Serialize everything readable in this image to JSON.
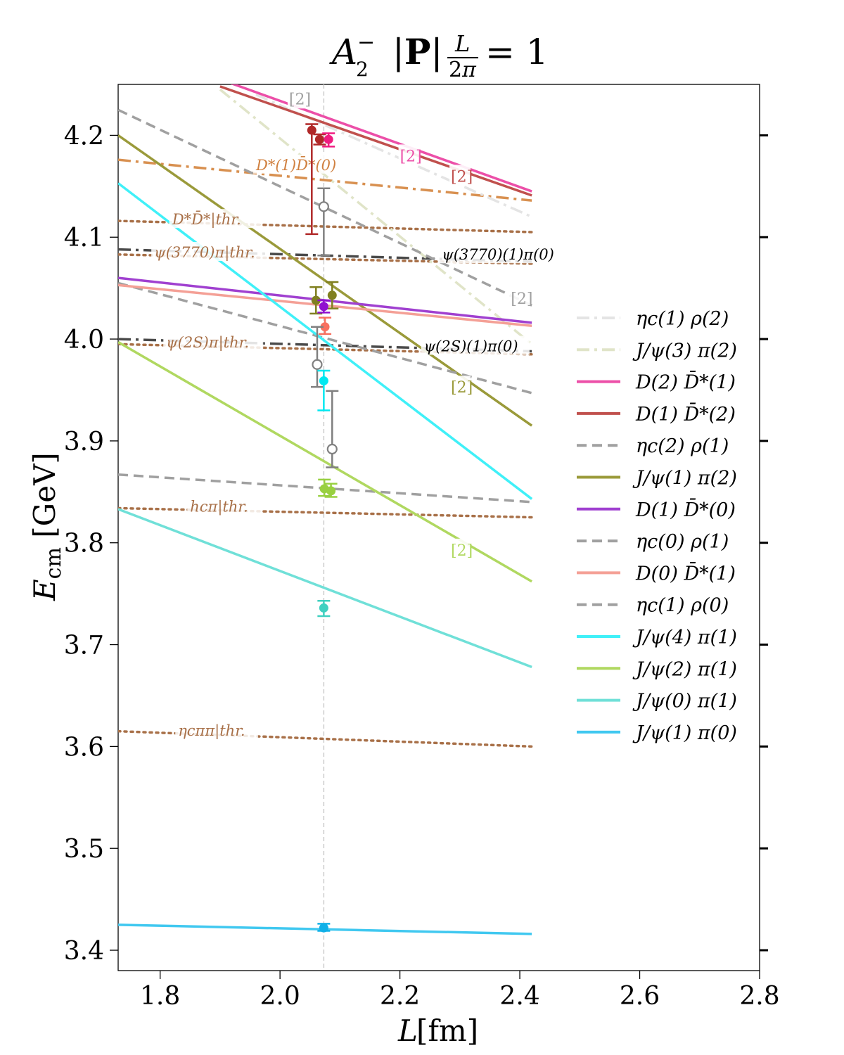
{
  "chart_data": {
    "type": "line",
    "title": "A₂⁻ |P|L/2π = 1",
    "xlabel": "L [fm]",
    "ylabel": "E_cm [GeV]",
    "xlim": [
      1.73,
      2.8
    ],
    "ylim": [
      3.38,
      4.25
    ],
    "x_ticks": [
      1.8,
      2.0,
      2.2,
      2.4,
      2.6,
      2.8
    ],
    "x_tick_labels": [
      "1.8",
      "2.0",
      "2.2",
      "2.4",
      "2.6",
      "2.8"
    ],
    "y_ticks": [
      3.4,
      3.5,
      3.6,
      3.7,
      3.8,
      3.9,
      4.0,
      4.1,
      4.2
    ],
    "y_tick_labels": [
      "3.4",
      "3.5",
      "3.6",
      "3.7",
      "3.8",
      "3.9",
      "4.0",
      "4.1",
      "4.2"
    ],
    "reference_line_x": 2.073,
    "grid": false,
    "legend_position": "right",
    "series": [
      {
        "name": "ηc(1) ρ(2)",
        "color": "#e4e4e4",
        "style": "dashdot",
        "x": [
          1.96,
          2.42
        ],
        "values": [
          4.24,
          4.12
        ]
      },
      {
        "name": "J/ψ(3) π(2)",
        "color": "#e0e4c8",
        "style": "dashdot",
        "x": [
          1.9,
          2.42
        ],
        "values": [
          4.245,
          3.995
        ]
      },
      {
        "name": "D(2) D̄*(1)",
        "color": "#ec4fa8",
        "style": "solid",
        "x": [
          1.9,
          2.42
        ],
        "values": [
          4.255,
          4.145
        ]
      },
      {
        "name": "D(1) D̄*(2)",
        "color": "#c0504d",
        "style": "solid",
        "x": [
          1.9,
          2.42
        ],
        "values": [
          4.248,
          4.141
        ]
      },
      {
        "name": "ηc(2) ρ(1)",
        "color": "#a0a0a0",
        "style": "dashed",
        "x": [
          1.73,
          2.42
        ],
        "values": [
          4.225,
          4.033
        ]
      },
      {
        "name": "J/ψ(1) π(2)",
        "color": "#9a9a3a",
        "style": "solid",
        "x": [
          1.73,
          2.42
        ],
        "values": [
          4.2,
          3.915
        ]
      },
      {
        "name": "D(1) D̄*(0)",
        "color": "#a040d0",
        "style": "solid",
        "x": [
          1.73,
          2.42
        ],
        "values": [
          4.06,
          4.016
        ]
      },
      {
        "name": "ηc(0) ρ(1)",
        "color": "#a0a0a0",
        "style": "dashed",
        "x": [
          1.73,
          2.42
        ],
        "values": [
          4.055,
          3.947
        ]
      },
      {
        "name": "D(0) D̄*(1)",
        "color": "#f4a096",
        "style": "solid",
        "x": [
          1.73,
          2.42
        ],
        "values": [
          4.053,
          4.013
        ]
      },
      {
        "name": "ηc(1) ρ(0)",
        "color": "#a0a0a0",
        "style": "dashed",
        "x": [
          1.73,
          2.42
        ],
        "values": [
          3.867,
          3.84
        ]
      },
      {
        "name": "J/ψ(4) π(1)",
        "color": "#40f0f8",
        "style": "solid",
        "x": [
          1.73,
          2.42
        ],
        "values": [
          4.153,
          3.843
        ]
      },
      {
        "name": "J/ψ(2) π(1)",
        "color": "#b0d860",
        "style": "solid",
        "x": [
          1.73,
          2.42
        ],
        "values": [
          3.997,
          3.762
        ]
      },
      {
        "name": "J/ψ(0) π(1)",
        "color": "#70e0d8",
        "style": "solid",
        "x": [
          1.73,
          2.42
        ],
        "values": [
          3.833,
          3.678
        ]
      },
      {
        "name": "J/ψ(1) π(0)",
        "color": "#40c8f0",
        "style": "solid",
        "x": [
          1.73,
          2.42
        ],
        "values": [
          3.425,
          3.416
        ]
      }
    ],
    "unlabeled_lines": [
      {
        "color": "#d89050",
        "style": "dashdot",
        "x": [
          1.73,
          2.42
        ],
        "values": [
          4.176,
          4.136
        ]
      },
      {
        "color": "#4a4a4a",
        "style": "dashdot",
        "x": [
          1.73,
          2.42
        ],
        "values": [
          4.088,
          4.076
        ]
      },
      {
        "color": "#4a4a4a",
        "style": "dashdot",
        "x": [
          1.73,
          2.42
        ],
        "values": [
          4.0,
          3.988
        ]
      }
    ],
    "threshold_lines": [
      {
        "label": "D*D̄*|thr.",
        "color": "#a87048",
        "x": [
          1.73,
          2.42
        ],
        "values": [
          4.116,
          4.105
        ]
      },
      {
        "label": "ψ(3770)π|thr.",
        "color": "#a87048",
        "x": [
          1.73,
          2.42
        ],
        "values": [
          4.083,
          4.074
        ]
      },
      {
        "label": "ψ(2S)π|thr.",
        "color": "#a87048",
        "x": [
          1.73,
          2.42
        ],
        "values": [
          3.995,
          3.985
        ]
      },
      {
        "label": "hcπ|thr.",
        "color": "#a87048",
        "x": [
          1.73,
          2.42
        ],
        "values": [
          3.834,
          3.825
        ]
      },
      {
        "label": "ηcππ|thr.",
        "color": "#a87048",
        "x": [
          1.73,
          2.42
        ],
        "values": [
          3.615,
          3.6
        ]
      }
    ],
    "curve_annotations": [
      {
        "text": "D*(1)D̄*(0)",
        "color": "#d08040",
        "x": 1.96,
        "y": 4.168
      },
      {
        "text": "ψ(3770)(1)π(0)",
        "color": "#000000",
        "x": 2.27,
        "y": 4.08
      },
      {
        "text": "ψ(2S)(1)π(0)",
        "color": "#000000",
        "x": 2.24,
        "y": 3.99
      }
    ],
    "degeneracy_marks": [
      {
        "text": "[2]",
        "color": "#a0a0a0",
        "x": 2.015,
        "y": 4.236
      },
      {
        "text": "[2]",
        "color": "#ec4fa8",
        "x": 2.2,
        "y": 4.18
      },
      {
        "text": "[2]",
        "color": "#c0504d",
        "x": 2.285,
        "y": 4.16
      },
      {
        "text": "[2]",
        "color": "#a0a0a0",
        "x": 2.385,
        "y": 4.04
      },
      {
        "text": "[2]",
        "color": "#9a9a3a",
        "x": 2.285,
        "y": 3.953
      },
      {
        "text": "[2]",
        "color": "#b0d860",
        "x": 2.285,
        "y": 3.793
      }
    ],
    "points": [
      {
        "x": 2.053,
        "y": 4.205,
        "err_low": 0.102,
        "err_high": 0.006,
        "color": "#b02828",
        "filled": true
      },
      {
        "x": 2.066,
        "y": 4.196,
        "err_low": 0.005,
        "err_high": 0.005,
        "color": "#b02828",
        "filled": true
      },
      {
        "x": 2.081,
        "y": 4.196,
        "err_low": 0.007,
        "err_high": 0.006,
        "color": "#f01c80",
        "filled": true
      },
      {
        "x": 2.073,
        "y": 4.13,
        "err_low": 0.048,
        "err_high": 0.018,
        "color": "#808080",
        "filled": false
      },
      {
        "x": 2.06,
        "y": 4.038,
        "err_low": 0.013,
        "err_high": 0.013,
        "color": "#808020",
        "filled": true
      },
      {
        "x": 2.087,
        "y": 4.043,
        "err_low": 0.013,
        "err_high": 0.013,
        "color": "#808020",
        "filled": true
      },
      {
        "x": 2.073,
        "y": 4.032,
        "err_low": 0.006,
        "err_high": 0.006,
        "color": "#9010d0",
        "filled": true
      },
      {
        "x": 2.075,
        "y": 4.012,
        "err_low": 0.007,
        "err_high": 0.009,
        "color": "#f87060",
        "filled": true
      },
      {
        "x": 2.062,
        "y": 3.975,
        "err_low": 0.022,
        "err_high": 0.037,
        "color": "#808080",
        "filled": false
      },
      {
        "x": 2.073,
        "y": 3.959,
        "err_low": 0.029,
        "err_high": 0.01,
        "color": "#00e8f0",
        "filled": true
      },
      {
        "x": 2.087,
        "y": 3.892,
        "err_low": 0.018,
        "err_high": 0.057,
        "color": "#808080",
        "filled": false
      },
      {
        "x": 2.074,
        "y": 3.853,
        "err_low": 0.007,
        "err_high": 0.009,
        "color": "#98d040",
        "filled": true
      },
      {
        "x": 2.085,
        "y": 3.851,
        "err_low": 0.006,
        "err_high": 0.007,
        "color": "#98d040",
        "filled": true
      },
      {
        "x": 2.073,
        "y": 3.736,
        "err_low": 0.008,
        "err_high": 0.007,
        "color": "#40d0c0",
        "filled": true
      },
      {
        "x": 2.073,
        "y": 3.422,
        "err_low": 0.003,
        "err_high": 0.004,
        "color": "#10b0e8",
        "filled": true
      }
    ]
  }
}
